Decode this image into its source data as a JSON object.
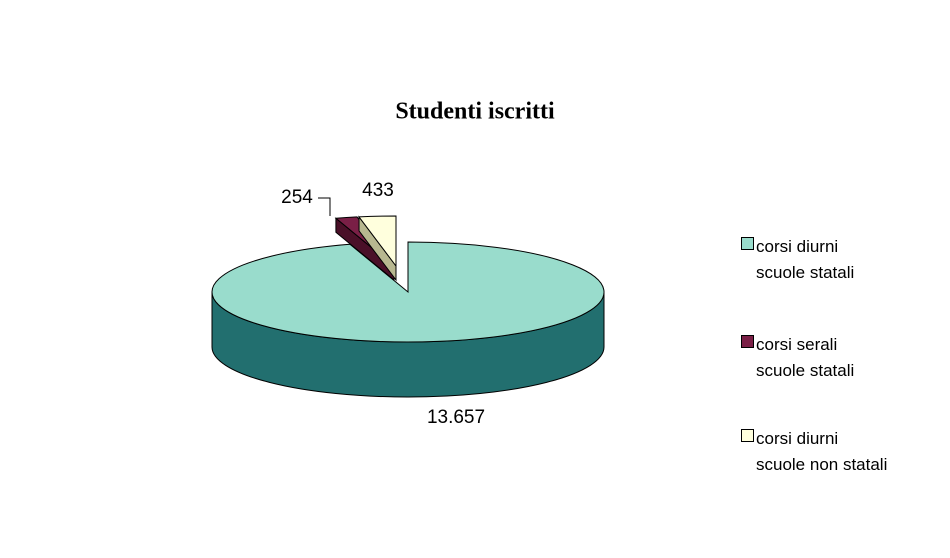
{
  "chart_data": {
    "type": "pie3d",
    "title": "Studenti iscritti",
    "categories": [
      "corsi diurni\nscuole statali",
      "corsi serali\nscuole statali",
      "corsi diurni\nscuole non statali"
    ],
    "values": [
      13657,
      254,
      433
    ],
    "value_labels": [
      "13.657",
      "254",
      "433"
    ],
    "colors": [
      "#99dccc",
      "#7a1f46",
      "#ffffdd"
    ],
    "side_colors": [
      "#226f6f",
      "#4a1028",
      "#b8b890"
    ],
    "legend": "right"
  }
}
